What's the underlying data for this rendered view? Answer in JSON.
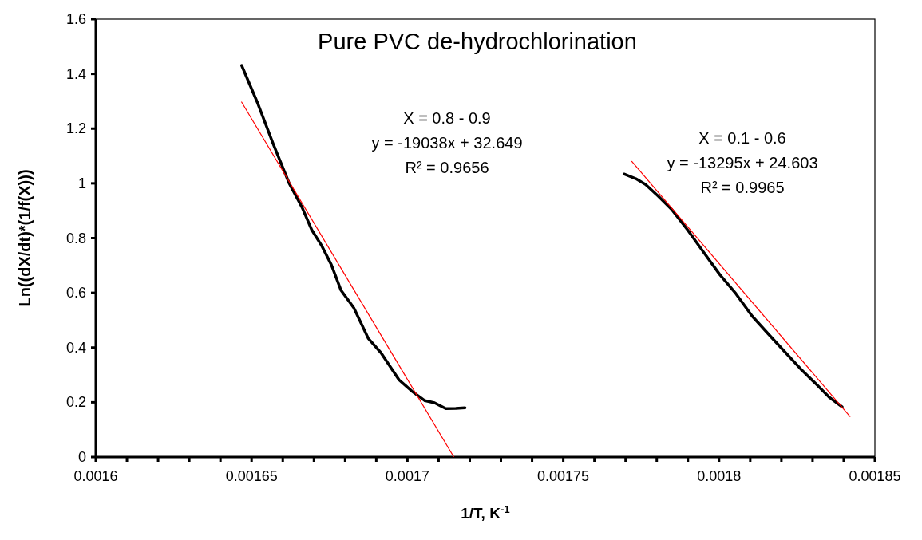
{
  "chart_data": {
    "type": "line",
    "title": "Pure PVC de-hydrochlorination",
    "xlabel": "1/T, K$^{-1}$",
    "ylabel": "Ln((dX/dt)*(1/f(X)))",
    "annotations": [
      "X = 0.8 - 0.9\ny = -19038x + 32.649\nR² = 0.9656",
      "X = 0.1 - 0.6\ny = -13295x + 24.603\nR² = 0.9965"
    ],
    "xlim": [
      0.0016,
      0.00185
    ],
    "ylim": [
      0,
      1.6
    ],
    "xticks": [
      0.0016,
      {
        "value": 0.00161,
        "label": null
      },
      {
        "value": 0.00162,
        "label": null
      },
      {
        "value": 0.00163,
        "label": null
      },
      {
        "value": 0.00164,
        "label": null
      },
      0.00165,
      {
        "value": 0.00166,
        "label": null
      },
      {
        "value": 0.00167,
        "label": null
      },
      {
        "value": 0.00168,
        "label": null
      },
      {
        "value": 0.00169,
        "label": null
      },
      0.0017,
      {
        "value": 0.00171,
        "label": null
      },
      {
        "value": 0.00172,
        "label": null
      },
      {
        "value": 0.00173,
        "label": null
      },
      {
        "value": 0.00174,
        "label": null
      },
      0.00175,
      {
        "value": 0.00176,
        "label": null
      },
      {
        "value": 0.00177,
        "label": null
      },
      {
        "value": 0.00178,
        "label": null
      },
      {
        "value": 0.00179,
        "label": null
      },
      0.0018,
      {
        "value": 0.00181,
        "label": null
      },
      {
        "value": 0.00182,
        "label": null
      },
      {
        "value": 0.00183,
        "label": null
      },
      {
        "value": 0.00184,
        "label": null
      },
      0.00185
    ],
    "yticks": [
      0,
      0.2,
      0.4,
      0.6,
      0.8,
      1,
      1.2,
      1.4,
      1.6
    ],
    "grid": false,
    "marker": "none",
    "line_style": "solid",
    "series": [
      {
        "color": "#000000",
        "x": [
          0.0016468,
          0.0016518,
          0.0016569,
          0.0016621,
          0.0016662,
          0.0016693,
          0.0016725,
          0.0016756,
          0.0016787,
          0.0016828,
          0.0016874,
          0.0016915,
          0.0016973,
          0.0017014,
          0.0017056,
          0.0017087,
          0.0017123,
          0.0017155,
          0.0017185
        ],
        "values": [
          1.431,
          1.297,
          1.145,
          0.999,
          0.912,
          0.83,
          0.772,
          0.702,
          0.609,
          0.545,
          0.434,
          0.381,
          0.282,
          0.241,
          0.206,
          0.198,
          0.177,
          0.178,
          0.18
        ]
      },
      {
        "color": "#000000",
        "x": [
          0.0017695,
          0.0017733,
          0.0017764,
          0.0017805,
          0.0017847,
          0.0017899,
          0.001795,
          0.0018002,
          0.0018054,
          0.0018106,
          0.0018157,
          0.0018209,
          0.0018261,
          0.0018313,
          0.0018354,
          0.0018395
        ],
        "values": [
          1.034,
          1.017,
          0.996,
          0.953,
          0.906,
          0.83,
          0.749,
          0.667,
          0.597,
          0.515,
          0.451,
          0.387,
          0.323,
          0.265,
          0.218,
          0.183
        ]
      },
      {
        "color": "#ff0000",
        "x": [
          0.0016468,
          0.0017149
        ],
        "values": [
          1.297,
          0
        ]
      },
      {
        "color": "#ff0000",
        "x": [
          0.001772,
          0.001842
        ],
        "values": [
          1.08,
          0.148
        ]
      }
    ]
  }
}
